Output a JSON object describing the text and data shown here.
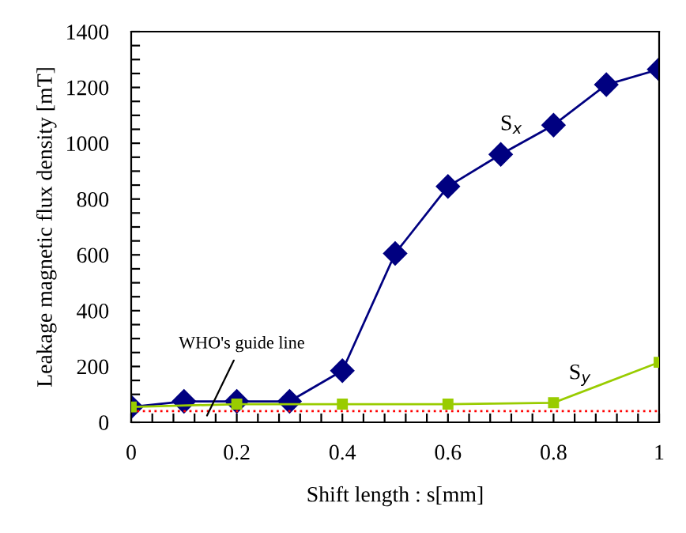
{
  "chart_data": {
    "type": "line",
    "xlabel": "Shift length : s[mm]",
    "ylabel": "Leakage magnetic flux density [mT]",
    "xlim": [
      0,
      1
    ],
    "ylim": [
      0,
      1400
    ],
    "xticks": [
      0,
      {
        "value": 0.04,
        "label": null
      },
      {
        "value": 0.08,
        "label": null
      },
      {
        "value": 0.12,
        "label": null
      },
      {
        "value": 0.16,
        "label": null
      },
      0.2,
      {
        "value": 0.24,
        "label": null
      },
      {
        "value": 0.28,
        "label": null
      },
      {
        "value": 0.32,
        "label": null
      },
      {
        "value": 0.36,
        "label": null
      },
      0.4,
      {
        "value": 0.44,
        "label": null
      },
      {
        "value": 0.48,
        "label": null
      },
      {
        "value": 0.52,
        "label": null
      },
      {
        "value": 0.56,
        "label": null
      },
      0.6,
      {
        "value": 0.64,
        "label": null
      },
      {
        "value": 0.68,
        "label": null
      },
      {
        "value": 0.72,
        "label": null
      },
      {
        "value": 0.76,
        "label": null
      },
      0.8,
      {
        "value": 0.84,
        "label": null
      },
      {
        "value": 0.88,
        "label": null
      },
      {
        "value": 0.92,
        "label": null
      },
      {
        "value": 0.96,
        "label": null
      },
      1
    ],
    "yticks": [
      0,
      {
        "value": 50,
        "label": null
      },
      {
        "value": 100,
        "label": null
      },
      {
        "value": 150,
        "label": null
      },
      200,
      {
        "value": 250,
        "label": null
      },
      {
        "value": 300,
        "label": null
      },
      {
        "value": 350,
        "label": null
      },
      400,
      {
        "value": 450,
        "label": null
      },
      {
        "value": 500,
        "label": null
      },
      {
        "value": 550,
        "label": null
      },
      600,
      {
        "value": 650,
        "label": null
      },
      {
        "value": 700,
        "label": null
      },
      {
        "value": 750,
        "label": null
      },
      800,
      {
        "value": 850,
        "label": null
      },
      {
        "value": 900,
        "label": null
      },
      {
        "value": 950,
        "label": null
      },
      1000,
      {
        "value": 1050,
        "label": null
      },
      {
        "value": 1100,
        "label": null
      },
      {
        "value": 1150,
        "label": null
      },
      1200,
      {
        "value": 1250,
        "label": null
      },
      {
        "value": 1300,
        "label": null
      },
      {
        "value": 1350,
        "label": null
      },
      1400
    ],
    "grid": false,
    "legend": false,
    "series": [
      {
        "name": "S$_{x}$",
        "color": "#000080",
        "marker": "diamond",
        "x": [
          0,
          0.1,
          0.2,
          0.3,
          0.4,
          0.5,
          0.6,
          0.7,
          0.8,
          0.9,
          1
        ],
        "values": [
          55,
          75,
          75,
          75,
          185,
          605,
          845,
          960,
          1065,
          1210,
          1265
        ]
      },
      {
        "name": "S$_{y}$",
        "color": "#99cc00",
        "marker": "square",
        "x": [
          0,
          0.2,
          0.4,
          0.6,
          0.8,
          1
        ],
        "values": [
          55,
          65,
          65,
          65,
          70,
          215
        ]
      }
    ],
    "ref_lines": [
      {
        "axis": "y",
        "value": 40,
        "label": "WHO's guide line",
        "color": "#ff0000",
        "line_style": "dotted"
      }
    ]
  }
}
